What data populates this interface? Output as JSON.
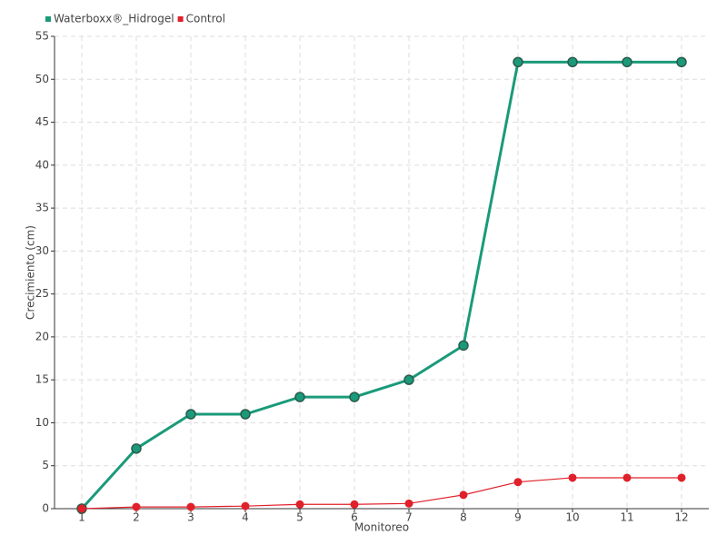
{
  "chart_data": {
    "type": "line",
    "x_label": "Monitoreo",
    "y_label": "Crecimiento (cm)",
    "categories": [
      "1",
      "2",
      "3",
      "4",
      "5",
      "6",
      "7",
      "8",
      "9",
      "10",
      "11",
      "12"
    ],
    "series": [
      {
        "name": "Waterboxx®_Hidrogel",
        "color": "#1a9a7a",
        "values": [
          0,
          7,
          11,
          11,
          13,
          13,
          15,
          19,
          52,
          52,
          52,
          52
        ]
      },
      {
        "name": "Control",
        "color": "#e0202a",
        "values": [
          0,
          0.2,
          0.2,
          0.3,
          0.5,
          0.5,
          0.6,
          1.6,
          3.1,
          3.6,
          3.6,
          3.6
        ]
      }
    ],
    "ylim": [
      0,
      55
    ],
    "yticks": [
      0,
      5,
      10,
      15,
      20,
      25,
      30,
      35,
      40,
      45,
      50,
      55
    ],
    "grid": true,
    "legend": "top-left"
  }
}
